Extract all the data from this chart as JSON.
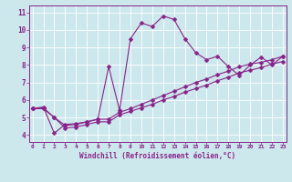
{
  "title": "",
  "xlabel": "Windchill (Refroidissement éolien,°C)",
  "ylabel": "",
  "bg_color": "#cce8ed",
  "line_color": "#882288",
  "grid_color": "#ffffff",
  "x_ticks": [
    0,
    1,
    2,
    3,
    4,
    5,
    6,
    7,
    8,
    9,
    10,
    11,
    12,
    13,
    14,
    15,
    16,
    17,
    18,
    19,
    20,
    21,
    22,
    23
  ],
  "y_ticks": [
    4,
    5,
    6,
    7,
    8,
    9,
    10,
    11
  ],
  "xlim": [
    -0.3,
    23.3
  ],
  "ylim": [
    3.6,
    11.4
  ],
  "line1_x": [
    0,
    1,
    2,
    3,
    4,
    5,
    6,
    7,
    8,
    9,
    10,
    11,
    12,
    13,
    14,
    15,
    16,
    17,
    18,
    19,
    20,
    21,
    22,
    23
  ],
  "line1_y": [
    5.5,
    5.6,
    4.1,
    4.6,
    4.65,
    4.75,
    4.9,
    7.9,
    5.4,
    9.5,
    10.4,
    10.2,
    10.8,
    10.6,
    9.5,
    8.7,
    8.3,
    8.5,
    7.9,
    7.4,
    8.0,
    8.45,
    8.0,
    8.5
  ],
  "line2_x": [
    0,
    1,
    2,
    3,
    4,
    5,
    6,
    7,
    8,
    9,
    10,
    11,
    12,
    13,
    14,
    15,
    16,
    17,
    18,
    19,
    20,
    21,
    22,
    23
  ],
  "line2_y": [
    5.5,
    5.55,
    5.0,
    4.55,
    4.6,
    4.75,
    4.9,
    4.9,
    5.3,
    5.5,
    5.75,
    6.0,
    6.25,
    6.5,
    6.75,
    7.0,
    7.2,
    7.45,
    7.65,
    7.9,
    8.05,
    8.15,
    8.3,
    8.5
  ],
  "line3_x": [
    0,
    1,
    2,
    3,
    4,
    5,
    6,
    7,
    8,
    9,
    10,
    11,
    12,
    13,
    14,
    15,
    16,
    17,
    18,
    19,
    20,
    21,
    22,
    23
  ],
  "line3_y": [
    5.5,
    5.5,
    5.0,
    4.4,
    4.45,
    4.6,
    4.75,
    4.75,
    5.15,
    5.35,
    5.55,
    5.75,
    6.0,
    6.2,
    6.45,
    6.65,
    6.85,
    7.1,
    7.3,
    7.55,
    7.7,
    7.85,
    8.05,
    8.2
  ],
  "marker": "D",
  "markersize": 2.5,
  "linewidth": 0.8
}
